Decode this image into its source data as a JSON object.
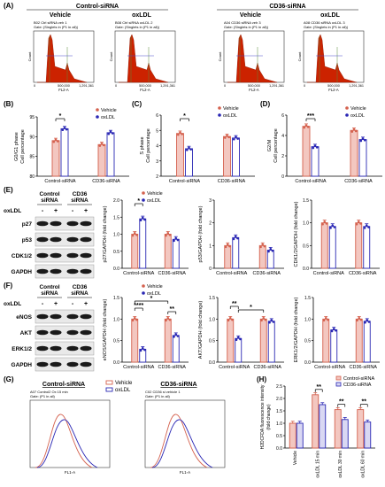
{
  "panel_labels": [
    "(A)",
    "(B)",
    "(C)",
    "(D)",
    "(E)",
    "(F)",
    "(G)",
    "(H)"
  ],
  "panelA": {
    "group_labels": [
      "Control-siRNA",
      "CD36-siRNA"
    ],
    "col_labels": [
      "Vehicle",
      "oxLDL",
      "Vehicle",
      "oxLDL"
    ],
    "plot_titles": [
      "B02 Ctrl siRNA veh 1\nGate: (Singlets in (P1 in all))",
      "B08 Ctrl siRNA oxLDL 2\nGate: (Singlets in (P1 in all))",
      "A04 CD36 siRNA veh 3\nGate: (Singlets in (P1 in all))",
      "A08 CD36 siRNA oxLDL 3\nGate: (Singlets in (P1 in all))"
    ],
    "xaxis_label": "FL2-A",
    "ytick": "Count",
    "xticks": [
      "0",
      "500,000",
      "1,291,361"
    ]
  },
  "legend": {
    "vehicle": "Vehicle",
    "oxldl": "oxLDL"
  },
  "blot_E": {
    "headers": [
      "Control",
      "siRNA",
      "CD36",
      "siRNA"
    ],
    "treatment_label": "oxLDL",
    "signs": [
      "-",
      "+",
      "-",
      "+"
    ],
    "proteins": [
      "p27",
      "p53",
      "CDK1/2",
      "GAPDH"
    ]
  },
  "blot_F": {
    "headers": [
      "Control",
      "siRNA",
      "CD36",
      "siRNA"
    ],
    "treatment_label": "oxLDL",
    "signs": [
      "-",
      "+",
      "-",
      "+"
    ],
    "proteins": [
      "eNOS",
      "AKT",
      "ERK1/2",
      "GAPDH"
    ]
  },
  "panelG": {
    "titles": [
      "Control-siRNA",
      "CD36-siRNA"
    ],
    "plot_titles": [
      "A07 Control2 Ox 15 min\nGate: (P1 in all)",
      "C02 CD36 si vehicle 1\nGate: (P1 in all)"
    ],
    "legend": [
      "Vehicle",
      "oxLDL"
    ],
    "xaxis_label": "FL1-A"
  },
  "colors": {
    "vehicle": "#d4614e",
    "oxldl": "#2a27b4",
    "bar_fill_vehicle": "#f3c7c0",
    "bar_fill_oxldl": "#ffffff"
  },
  "chart_data": [
    {
      "id": "B",
      "type": "bar",
      "categories": [
        "Control-siRNA",
        "CD36-siRNA"
      ],
      "series": [
        {
          "name": "Vehicle",
          "values": [
            89,
            88
          ]
        },
        {
          "name": "oxLDL",
          "values": [
            92,
            91
          ]
        }
      ],
      "ylabel": "G0/G1 phase\nCell percentage",
      "ylim": [
        80,
        95
      ],
      "yticks": [
        80,
        85,
        90,
        95
      ],
      "annotations": [
        "*"
      ]
    },
    {
      "id": "C",
      "type": "bar",
      "categories": [
        "Control-siRNA",
        "CD36-siRNA"
      ],
      "series": [
        {
          "name": "Vehicle",
          "values": [
            4.8,
            4.6
          ]
        },
        {
          "name": "oxLDL",
          "values": [
            3.8,
            4.5
          ]
        }
      ],
      "ylabel": "S phase\nCell percentage",
      "ylim": [
        2,
        6
      ],
      "yticks": [
        2,
        3,
        4,
        5,
        6
      ],
      "annotations": [
        "*"
      ]
    },
    {
      "id": "D",
      "type": "bar",
      "categories": [
        "Control-siRNA",
        "CD36-siRNA"
      ],
      "series": [
        {
          "name": "Vehicle",
          "values": [
            4.9,
            4.5
          ]
        },
        {
          "name": "oxLDL",
          "values": [
            2.9,
            3.6
          ]
        }
      ],
      "ylabel": "G2/M\nCell percentage",
      "ylim": [
        0,
        6
      ],
      "yticks": [
        0,
        2,
        4,
        6
      ],
      "annotations": [
        "***"
      ]
    },
    {
      "id": "E1",
      "type": "bar",
      "categories": [
        "Control-siRNA",
        "CD36-siRNA"
      ],
      "series": [
        {
          "name": "Vehicle",
          "values": [
            1.0,
            1.0
          ]
        },
        {
          "name": "oxLDL",
          "values": [
            1.45,
            0.85
          ]
        }
      ],
      "ylabel": "p27/GAPDH (fold change)",
      "ylim": [
        0,
        2.0
      ],
      "yticks": [
        0.0,
        0.5,
        1.0,
        1.5,
        2.0
      ],
      "annotations": [
        "*"
      ]
    },
    {
      "id": "E2",
      "type": "bar",
      "categories": [
        "Control-siRNA",
        "CD36-siRNA"
      ],
      "series": [
        {
          "name": "Vehicle",
          "values": [
            1.0,
            1.0
          ]
        },
        {
          "name": "oxLDL",
          "values": [
            1.35,
            0.8
          ]
        }
      ],
      "ylabel": "p53/GAPDH (fold change)",
      "ylim": [
        0,
        3
      ],
      "yticks": [
        0,
        1,
        2,
        3
      ],
      "annotations": []
    },
    {
      "id": "E3",
      "type": "bar",
      "categories": [
        "Control-siRNA",
        "CD36-siRNA"
      ],
      "series": [
        {
          "name": "Vehicle",
          "values": [
            1.0,
            1.0
          ]
        },
        {
          "name": "oxLDL",
          "values": [
            0.92,
            0.92
          ]
        }
      ],
      "ylabel": "CDK1/2/GAPDH (fold change)",
      "ylim": [
        0,
        1.5
      ],
      "yticks": [
        0.0,
        0.5,
        1.0,
        1.5
      ],
      "annotations": []
    },
    {
      "id": "F1",
      "type": "bar",
      "categories": [
        "Control-siRNA",
        "CD36-siRNA"
      ],
      "series": [
        {
          "name": "Vehicle",
          "values": [
            1.0,
            1.0
          ]
        },
        {
          "name": "oxLDL",
          "values": [
            0.3,
            0.62
          ]
        }
      ],
      "ylabel": "eNOS/GAPDH (fold change)",
      "ylim": [
        0,
        1.5
      ],
      "yticks": [
        0.0,
        0.5,
        1.0,
        1.5
      ],
      "annotations": [
        "****",
        "*",
        "**"
      ]
    },
    {
      "id": "F2",
      "type": "bar",
      "categories": [
        "Control-siRNA",
        "CD36-siRNA"
      ],
      "series": [
        {
          "name": "Vehicle",
          "values": [
            1.0,
            1.0
          ]
        },
        {
          "name": "oxLDL",
          "values": [
            0.55,
            0.95
          ]
        }
      ],
      "ylabel": "AKT/GAPDH (fold change)",
      "ylim": [
        0,
        1.5
      ],
      "yticks": [
        0.0,
        0.5,
        1.0,
        1.5
      ],
      "annotations": [
        "**",
        "*"
      ]
    },
    {
      "id": "F3",
      "type": "bar",
      "categories": [
        "Control-siRNA",
        "CD36-siRNA"
      ],
      "series": [
        {
          "name": "Vehicle",
          "values": [
            1.0,
            1.0
          ]
        },
        {
          "name": "oxLDL",
          "values": [
            0.75,
            0.95
          ]
        }
      ],
      "ylabel": "ERK1/2/GAPDH (fold change)",
      "ylim": [
        0,
        1.5
      ],
      "yticks": [
        0.0,
        0.5,
        1.0,
        1.5
      ],
      "annotations": []
    },
    {
      "id": "H",
      "type": "bar",
      "categories": [
        "Vehicle",
        "oxLDL 15 min",
        "oxLDL 30 min",
        "oxLDL 60 min"
      ],
      "series": [
        {
          "name": "Control-siRNA",
          "values": [
            1.0,
            2.15,
            1.55,
            1.55
          ]
        },
        {
          "name": "CD36-siRNA",
          "values": [
            1.0,
            1.75,
            1.15,
            1.05
          ]
        }
      ],
      "ylabel": "H2DCFDA fluorescence intensity\n(fold change)",
      "ylim": [
        0,
        2.5
      ],
      "yticks": [
        0.0,
        0.5,
        1.0,
        1.5,
        2.0,
        2.5
      ],
      "annotations": [
        "**",
        "**",
        "**"
      ]
    }
  ]
}
